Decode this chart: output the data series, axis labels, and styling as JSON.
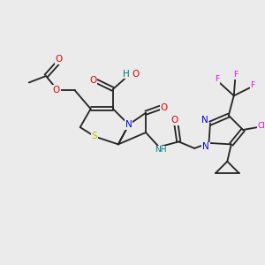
{
  "bg_color": "#ebebeb",
  "bond_color": "#222222",
  "bond_lw": 1.3,
  "atom_colors": {
    "N": "#0000ee",
    "O": "#dd0000",
    "S": "#bbbb00",
    "Cl": "#ee00ee",
    "F": "#ee00ee",
    "NH": "#007777",
    "C": "#222222"
  },
  "fs": 7.5,
  "fss": 6.5
}
